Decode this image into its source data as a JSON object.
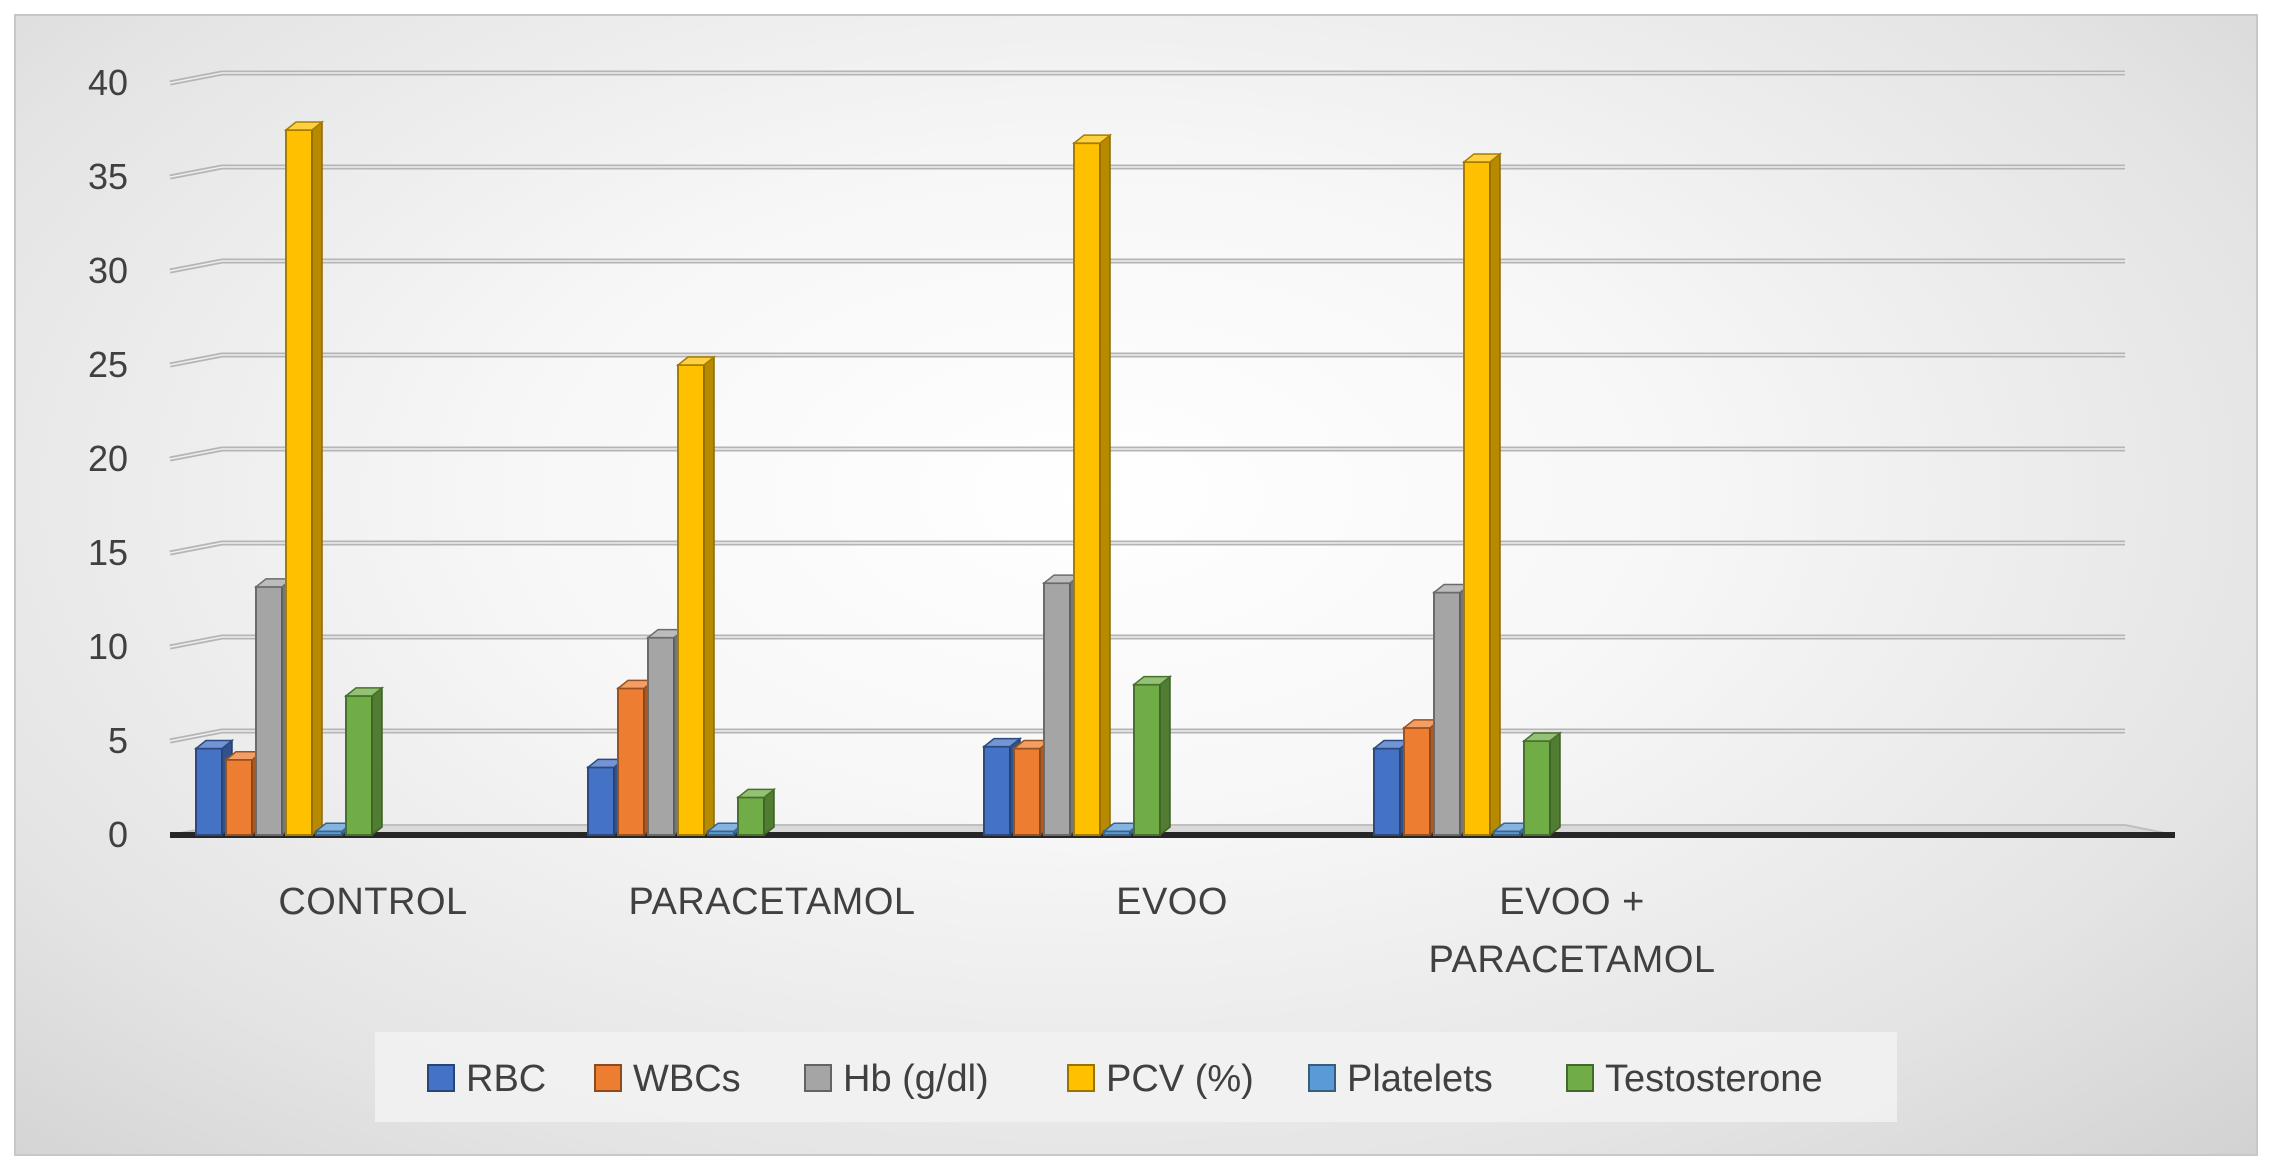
{
  "chart_data": {
    "type": "bar",
    "title": "",
    "xlabel": "",
    "ylabel": "",
    "ylim": [
      0,
      40
    ],
    "yticks": [
      "0",
      "5",
      "10",
      "15",
      "20",
      "25",
      "30",
      "35",
      "40"
    ],
    "categories": [
      "CONTROL",
      "PARACETAMOL",
      "EVOO",
      "EVOO + PARACETAMOL"
    ],
    "category_lines": [
      [
        "CONTROL"
      ],
      [
        "PARACETAMOL"
      ],
      [
        "EVOO"
      ],
      [
        "EVOO +",
        "PARACETAMOL"
      ]
    ],
    "series": [
      {
        "name": "RBC",
        "color": "#4472c4",
        "values": [
          4.6,
          3.6,
          4.7,
          4.6
        ]
      },
      {
        "name": "WBCs",
        "color": "#ed7d31",
        "values": [
          4.0,
          7.8,
          4.6,
          5.7
        ]
      },
      {
        "name": "Hb (g/dl)",
        "color": "#a5a5a5",
        "values": [
          13.2,
          10.5,
          13.4,
          12.9
        ]
      },
      {
        "name": "PCV (%)",
        "color": "#ffc000",
        "values": [
          37.5,
          25.0,
          36.8,
          35.8
        ]
      },
      {
        "name": "Platelets",
        "color": "#5b9bd5",
        "values": [
          0.2,
          0.2,
          0.2,
          0.2
        ]
      },
      {
        "name": "Testosterone",
        "color": "#70ad47",
        "values": [
          7.4,
          2.0,
          8.0,
          5.0
        ]
      }
    ],
    "legend_position": "bottom",
    "grid": true
  }
}
